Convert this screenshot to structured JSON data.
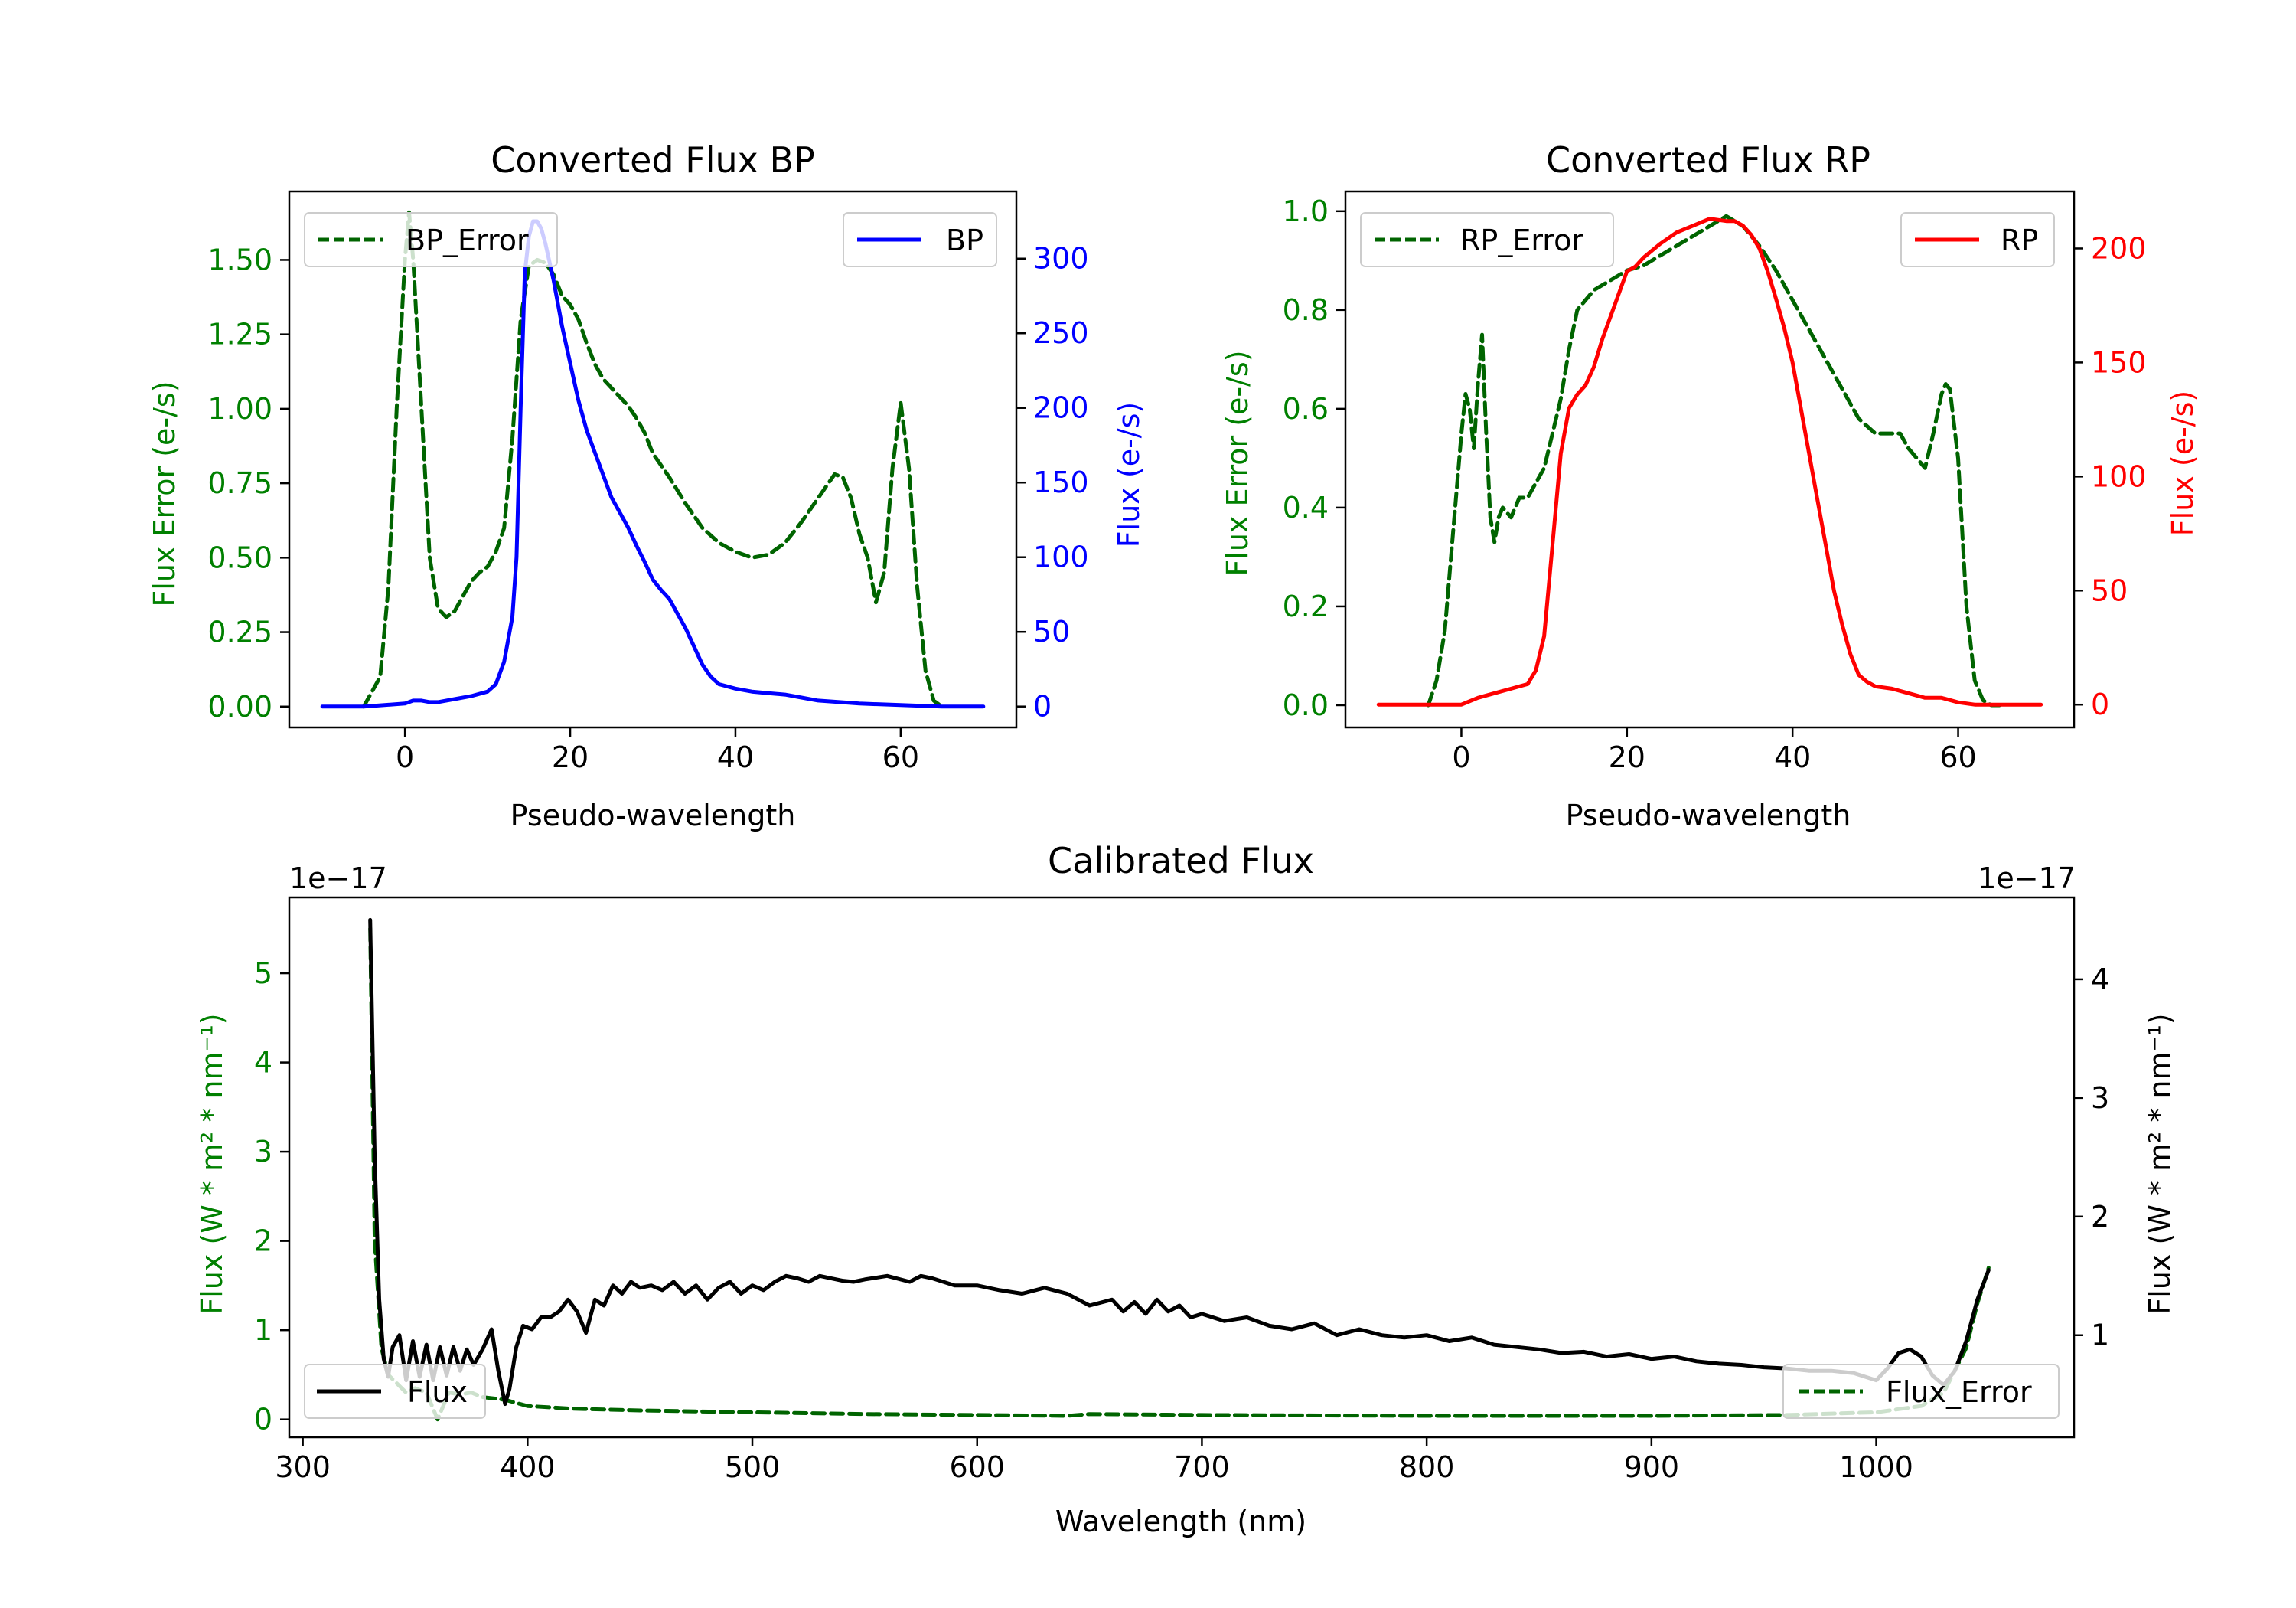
{
  "chart_data": [
    {
      "id": "bp",
      "type": "line",
      "title": "Converted Flux BP",
      "xlabel": "Pseudo-wavelength",
      "ylabel_left": "Flux Error (e-/s)",
      "ylabel_right": "Flux (e-/s)",
      "xlim": [
        -14,
        74
      ],
      "ylim_left": [
        -0.07,
        1.73
      ],
      "ylim_right": [
        -14,
        345
      ],
      "xticks": [
        0,
        20,
        40,
        60
      ],
      "yticks_left": [
        0.0,
        0.25,
        0.5,
        0.75,
        1.0,
        1.25,
        1.5
      ],
      "yticks_left_labels": [
        "0.00",
        "0.25",
        "0.50",
        "0.75",
        "1.00",
        "1.25",
        "1.50"
      ],
      "yticks_right": [
        0,
        50,
        100,
        150,
        200,
        250,
        300
      ],
      "colors": {
        "left_axis": "#008000",
        "right_axis": "#0000ff"
      },
      "legend_left": {
        "label": "BP_Error",
        "placement": "upper left"
      },
      "legend_right": {
        "label": "BP",
        "placement": "upper right"
      },
      "series": [
        {
          "name": "BP_Error",
          "axis": "left",
          "style": "dashed",
          "color": "#006400",
          "x": [
            -5,
            -3,
            -2,
            -1,
            0,
            0.5,
            1,
            2,
            3,
            4,
            5,
            6,
            7,
            8,
            9,
            10,
            11,
            12,
            13,
            14,
            15,
            16,
            17,
            18,
            19,
            20,
            21,
            22,
            23,
            24,
            25,
            26,
            27,
            28,
            29,
            30,
            32,
            34,
            36,
            38,
            40,
            42,
            44,
            46,
            48,
            50,
            52,
            53,
            54,
            55,
            56,
            57,
            58,
            59,
            60,
            61,
            62,
            63,
            64,
            65
          ],
          "y": [
            0.0,
            0.1,
            0.4,
            1.0,
            1.5,
            1.66,
            1.5,
            1.0,
            0.5,
            0.33,
            0.3,
            0.32,
            0.37,
            0.42,
            0.45,
            0.47,
            0.52,
            0.6,
            0.9,
            1.3,
            1.48,
            1.5,
            1.49,
            1.45,
            1.38,
            1.35,
            1.3,
            1.22,
            1.15,
            1.1,
            1.07,
            1.04,
            1.01,
            0.97,
            0.92,
            0.85,
            0.77,
            0.68,
            0.6,
            0.55,
            0.52,
            0.5,
            0.51,
            0.55,
            0.62,
            0.7,
            0.78,
            0.77,
            0.7,
            0.58,
            0.5,
            0.35,
            0.45,
            0.8,
            1.02,
            0.8,
            0.4,
            0.12,
            0.02,
            0.0
          ]
        },
        {
          "name": "BP",
          "axis": "right",
          "style": "solid",
          "color": "#0000ff",
          "x": [
            -10,
            -5,
            0,
            1,
            2,
            3,
            4,
            6,
            8,
            10,
            11,
            12,
            13,
            13.5,
            14,
            14.5,
            15,
            15.5,
            16,
            16.5,
            17,
            18,
            19,
            20,
            21,
            22,
            23,
            24,
            25,
            26,
            27,
            28,
            29,
            30,
            31,
            32,
            33,
            34,
            35,
            36,
            37,
            38,
            40,
            42,
            44,
            46,
            48,
            50,
            55,
            60,
            65,
            70
          ],
          "y": [
            0,
            0,
            2,
            4,
            4,
            3,
            3,
            5,
            7,
            10,
            15,
            30,
            60,
            100,
            200,
            290,
            315,
            325,
            325,
            320,
            310,
            285,
            255,
            230,
            205,
            185,
            170,
            155,
            140,
            130,
            120,
            108,
            97,
            85,
            78,
            72,
            62,
            52,
            40,
            28,
            20,
            15,
            12,
            10,
            9,
            8,
            6,
            4,
            2,
            1,
            0,
            0
          ]
        }
      ]
    },
    {
      "id": "rp",
      "type": "line",
      "title": "Converted Flux RP",
      "xlabel": "Pseudo-wavelength",
      "ylabel_left": "Flux Error (e-/s)",
      "ylabel_right": "Flux (e-/s)",
      "xlim": [
        -14,
        74
      ],
      "ylim_left": [
        -0.045,
        1.04
      ],
      "ylim_right": [
        -10,
        225
      ],
      "xticks": [
        0,
        20,
        40,
        60
      ],
      "yticks_left": [
        0.0,
        0.2,
        0.4,
        0.6,
        0.8,
        1.0
      ],
      "yticks_left_labels": [
        "0.0",
        "0.2",
        "0.4",
        "0.6",
        "0.8",
        "1.0"
      ],
      "yticks_right": [
        0,
        50,
        100,
        150,
        200
      ],
      "colors": {
        "left_axis": "#008000",
        "right_axis": "#ff0000"
      },
      "legend_left": {
        "label": "RP_Error",
        "placement": "upper left"
      },
      "legend_right": {
        "label": "RP",
        "placement": "upper right"
      },
      "series": [
        {
          "name": "RP_Error",
          "axis": "right_error",
          "style": "dashed",
          "color": "#006400",
          "x": [
            -4,
            -3,
            -2,
            -1,
            0,
            0.5,
            1,
            1.5,
            2,
            2.5,
            3,
            3.5,
            4,
            4.5,
            5,
            6,
            7,
            8,
            9,
            10,
            11,
            12,
            13,
            14,
            16,
            18,
            20,
            22,
            24,
            26,
            28,
            30,
            32,
            34,
            36,
            38,
            40,
            42,
            44,
            46,
            48,
            50,
            52,
            53,
            54,
            55,
            56,
            57,
            58,
            58.5,
            59,
            60,
            61,
            62,
            63,
            64,
            65
          ],
          "y": [
            0.0,
            0.05,
            0.15,
            0.35,
            0.55,
            0.63,
            0.6,
            0.52,
            0.65,
            0.75,
            0.55,
            0.38,
            0.33,
            0.38,
            0.4,
            0.38,
            0.42,
            0.42,
            0.45,
            0.48,
            0.55,
            0.62,
            0.72,
            0.8,
            0.84,
            0.86,
            0.88,
            0.89,
            0.91,
            0.93,
            0.95,
            0.97,
            0.99,
            0.97,
            0.93,
            0.88,
            0.82,
            0.76,
            0.7,
            0.64,
            0.58,
            0.55,
            0.55,
            0.55,
            0.52,
            0.5,
            0.48,
            0.55,
            0.63,
            0.65,
            0.64,
            0.5,
            0.2,
            0.05,
            0.01,
            0.0,
            0.0
          ],
          "note": "plotted on left axis"
        },
        {
          "name": "RP",
          "axis": "right",
          "style": "solid",
          "color": "#ff0000",
          "x": [
            -10,
            -5,
            0,
            2,
            4,
            6,
            8,
            9,
            10,
            11,
            12,
            13,
            14,
            15,
            16,
            17,
            18,
            19,
            20,
            21,
            22,
            24,
            26,
            28,
            30,
            32,
            33,
            34,
            35,
            36,
            37,
            38,
            39,
            40,
            41,
            42,
            43,
            44,
            45,
            46,
            47,
            48,
            49,
            50,
            52,
            54,
            56,
            58,
            60,
            62,
            65,
            70
          ],
          "y": [
            0,
            0,
            0,
            3,
            5,
            7,
            9,
            15,
            30,
            70,
            110,
            130,
            136,
            140,
            148,
            160,
            170,
            180,
            190,
            192,
            196,
            202,
            207,
            210,
            213,
            212,
            212,
            210,
            206,
            200,
            190,
            178,
            165,
            150,
            130,
            110,
            90,
            70,
            50,
            35,
            22,
            13,
            10,
            8,
            7,
            5,
            3,
            3,
            1,
            0,
            0,
            0
          ]
        }
      ]
    },
    {
      "id": "cal",
      "type": "line",
      "title": "Calibrated Flux",
      "xlabel": "Wavelength (nm)",
      "ylabel_left": "Flux (W * m² * nm⁻¹)",
      "ylabel_right": "Flux (W * m² * nm⁻¹)",
      "offset_left": "1e−17",
      "offset_right": "1e−17",
      "xlim": [
        294,
        1088
      ],
      "ylim_left": [
        -0.2,
        5.85
      ],
      "ylim_right": [
        0.14,
        4.69
      ],
      "xticks": [
        300,
        400,
        500,
        600,
        700,
        800,
        900,
        1000
      ],
      "yticks_left": [
        0,
        1,
        2,
        3,
        4,
        5
      ],
      "yticks_right": [
        1,
        2,
        3,
        4
      ],
      "colors": {
        "left_axis": "#008000",
        "right_axis": "#000000"
      },
      "legend_left": {
        "label": "Flux",
        "placement": "lower left"
      },
      "legend_right": {
        "label": "Flux_Error",
        "placement": "lower right"
      },
      "series": [
        {
          "name": "Flux_Error",
          "axis": "left",
          "style": "dashed",
          "color": "#006400",
          "x": [
            330,
            332,
            335,
            338,
            342,
            346,
            350,
            355,
            360,
            365,
            370,
            375,
            380,
            390,
            400,
            420,
            450,
            500,
            550,
            600,
            640,
            650,
            700,
            800,
            900,
            960,
            1000,
            1020,
            1030,
            1040,
            1045,
            1050
          ],
          "y": [
            5.5,
            2.0,
            0.8,
            0.5,
            0.4,
            0.3,
            0.35,
            0.3,
            0.0,
            0.3,
            0.28,
            0.3,
            0.25,
            0.22,
            0.15,
            0.12,
            0.1,
            0.08,
            0.06,
            0.05,
            0.04,
            0.06,
            0.05,
            0.04,
            0.04,
            0.05,
            0.08,
            0.15,
            0.3,
            0.8,
            1.3,
            1.7
          ]
        },
        {
          "name": "Flux",
          "axis": "right",
          "style": "solid",
          "color": "#000000",
          "x": [
            330,
            332,
            334,
            336,
            338,
            340,
            343,
            346,
            349,
            352,
            355,
            358,
            361,
            364,
            367,
            370,
            373,
            376,
            380,
            384,
            387,
            390,
            392,
            395,
            398,
            402,
            406,
            410,
            414,
            418,
            422,
            426,
            430,
            434,
            438,
            442,
            446,
            450,
            455,
            460,
            465,
            470,
            475,
            480,
            485,
            490,
            495,
            500,
            505,
            510,
            515,
            520,
            525,
            530,
            535,
            540,
            545,
            550,
            560,
            570,
            575,
            580,
            590,
            600,
            610,
            620,
            630,
            640,
            650,
            660,
            665,
            670,
            675,
            680,
            685,
            690,
            695,
            700,
            710,
            720,
            730,
            740,
            750,
            760,
            770,
            780,
            790,
            800,
            810,
            820,
            830,
            840,
            850,
            860,
            870,
            880,
            890,
            900,
            910,
            920,
            930,
            940,
            950,
            960,
            970,
            980,
            990,
            1000,
            1005,
            1010,
            1015,
            1020,
            1025,
            1030,
            1035,
            1040,
            1045,
            1050
          ],
          "y": [
            4.5,
            2.5,
            1.3,
            0.8,
            0.65,
            0.9,
            1.0,
            0.62,
            0.95,
            0.65,
            0.92,
            0.62,
            0.9,
            0.66,
            0.9,
            0.7,
            0.88,
            0.75,
            0.88,
            1.05,
            0.7,
            0.42,
            0.55,
            0.9,
            1.08,
            1.05,
            1.15,
            1.15,
            1.2,
            1.3,
            1.2,
            1.02,
            1.3,
            1.25,
            1.42,
            1.35,
            1.45,
            1.4,
            1.42,
            1.38,
            1.45,
            1.35,
            1.42,
            1.3,
            1.4,
            1.45,
            1.35,
            1.42,
            1.38,
            1.45,
            1.5,
            1.48,
            1.45,
            1.5,
            1.48,
            1.46,
            1.45,
            1.47,
            1.5,
            1.45,
            1.5,
            1.48,
            1.42,
            1.42,
            1.38,
            1.35,
            1.4,
            1.35,
            1.25,
            1.3,
            1.2,
            1.28,
            1.18,
            1.3,
            1.2,
            1.25,
            1.15,
            1.18,
            1.12,
            1.15,
            1.08,
            1.05,
            1.1,
            1.0,
            1.05,
            1.0,
            0.98,
            1.0,
            0.95,
            0.98,
            0.92,
            0.9,
            0.88,
            0.85,
            0.86,
            0.82,
            0.84,
            0.8,
            0.82,
            0.78,
            0.76,
            0.75,
            0.73,
            0.72,
            0.7,
            0.7,
            0.68,
            0.62,
            0.72,
            0.85,
            0.88,
            0.82,
            0.66,
            0.58,
            0.7,
            0.95,
            1.3,
            1.55
          ]
        }
      ]
    }
  ]
}
